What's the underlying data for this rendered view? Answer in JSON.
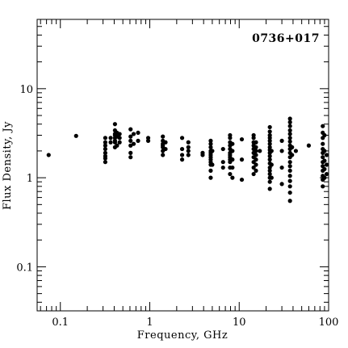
{
  "chart_data": {
    "type": "scatter",
    "title": "",
    "annotation": "0736+017",
    "xlabel": "Frequency, GHz",
    "ylabel": "Flux Density, Jy",
    "xscale": "log",
    "yscale": "log",
    "xlim": [
      0.055,
      100
    ],
    "ylim": [
      0.032,
      60
    ],
    "x_ticks": [
      {
        "value": 0.1,
        "label": "0.1"
      },
      {
        "value": 1,
        "label": "1"
      },
      {
        "value": 10,
        "label": "10"
      },
      {
        "value": 100,
        "label": "100"
      }
    ],
    "y_ticks": [
      {
        "value": 0.1,
        "label": "0.1"
      },
      {
        "value": 1,
        "label": "1"
      },
      {
        "value": 10,
        "label": "10"
      }
    ],
    "grid": false,
    "legend": "none",
    "marker_color": "#000000",
    "series": [
      {
        "points": [
          [
            0.074,
            1.8
          ],
          [
            0.15,
            2.95
          ],
          [
            0.318,
            1.5
          ],
          [
            0.318,
            1.75
          ],
          [
            0.318,
            1.9
          ],
          [
            0.318,
            2.1
          ],
          [
            0.318,
            2.3
          ],
          [
            0.318,
            2.5
          ],
          [
            0.318,
            2.8
          ],
          [
            0.318,
            1.65
          ],
          [
            0.365,
            2.5
          ],
          [
            0.365,
            2.8
          ],
          [
            0.408,
            2.2
          ],
          [
            0.408,
            2.5
          ],
          [
            0.408,
            2.8
          ],
          [
            0.408,
            3.1
          ],
          [
            0.408,
            3.4
          ],
          [
            0.408,
            4.0
          ],
          [
            0.408,
            3.0
          ],
          [
            0.408,
            2.6
          ],
          [
            0.43,
            2.3
          ],
          [
            0.43,
            2.9
          ],
          [
            0.43,
            3.2
          ],
          [
            0.46,
            2.5
          ],
          [
            0.46,
            2.8
          ],
          [
            0.46,
            3.1
          ],
          [
            0.61,
            1.7
          ],
          [
            0.61,
            1.9
          ],
          [
            0.61,
            2.3
          ],
          [
            0.61,
            2.6
          ],
          [
            0.61,
            2.9
          ],
          [
            0.61,
            3.5
          ],
          [
            0.66,
            2.4
          ],
          [
            0.66,
            3.1
          ],
          [
            0.74,
            2.6
          ],
          [
            0.74,
            3.2
          ],
          [
            0.96,
            2.6
          ],
          [
            0.96,
            2.8
          ],
          [
            1.4,
            1.8
          ],
          [
            1.4,
            2.0
          ],
          [
            1.4,
            2.2
          ],
          [
            1.4,
            2.4
          ],
          [
            1.4,
            2.6
          ],
          [
            1.4,
            2.9
          ],
          [
            1.4,
            2.3
          ],
          [
            1.5,
            2.1
          ],
          [
            1.5,
            2.5
          ],
          [
            2.3,
            1.6
          ],
          [
            2.3,
            1.8
          ],
          [
            2.3,
            2.1
          ],
          [
            2.3,
            2.8
          ],
          [
            2.7,
            1.8
          ],
          [
            2.7,
            2.0
          ],
          [
            2.7,
            2.2
          ],
          [
            2.7,
            2.5
          ],
          [
            3.9,
            1.8
          ],
          [
            3.9,
            1.9
          ],
          [
            4.8,
            1.0
          ],
          [
            4.8,
            1.2
          ],
          [
            4.8,
            1.4
          ],
          [
            4.8,
            1.6
          ],
          [
            4.8,
            1.8
          ],
          [
            4.8,
            2.0
          ],
          [
            4.8,
            2.2
          ],
          [
            4.8,
            2.4
          ],
          [
            4.8,
            2.6
          ],
          [
            4.8,
            1.5
          ],
          [
            4.8,
            1.7
          ],
          [
            4.8,
            1.9
          ],
          [
            5.0,
            1.4
          ],
          [
            5.0,
            2.0
          ],
          [
            6.6,
            1.3
          ],
          [
            6.6,
            1.5
          ],
          [
            6.6,
            2.1
          ],
          [
            7.9,
            1.1
          ],
          [
            7.9,
            1.3
          ],
          [
            7.9,
            1.5
          ],
          [
            7.9,
            1.7
          ],
          [
            7.9,
            1.9
          ],
          [
            7.9,
            2.1
          ],
          [
            7.9,
            2.3
          ],
          [
            7.9,
            2.5
          ],
          [
            7.9,
            2.8
          ],
          [
            7.9,
            3.0
          ],
          [
            7.9,
            1.6
          ],
          [
            7.9,
            1.8
          ],
          [
            8.4,
            1.0
          ],
          [
            8.4,
            1.3
          ],
          [
            8.4,
            1.6
          ],
          [
            8.4,
            2.0
          ],
          [
            8.4,
            2.4
          ],
          [
            10.7,
            0.95
          ],
          [
            10.7,
            1.6
          ],
          [
            10.7,
            2.7
          ],
          [
            14.5,
            1.1
          ],
          [
            14.5,
            1.3
          ],
          [
            14.5,
            1.5
          ],
          [
            14.5,
            1.7
          ],
          [
            14.5,
            1.9
          ],
          [
            14.5,
            2.1
          ],
          [
            14.5,
            2.3
          ],
          [
            14.5,
            2.5
          ],
          [
            14.5,
            2.8
          ],
          [
            14.5,
            3.0
          ],
          [
            15.4,
            1.2
          ],
          [
            15.4,
            1.4
          ],
          [
            15.4,
            1.6
          ],
          [
            15.4,
            1.8
          ],
          [
            15.4,
            2.0
          ],
          [
            15.4,
            2.2
          ],
          [
            15.4,
            2.5
          ],
          [
            17.0,
            2.0
          ],
          [
            22.0,
            0.75
          ],
          [
            22.0,
            0.9
          ],
          [
            22.0,
            1.0
          ],
          [
            22.0,
            1.1
          ],
          [
            22.0,
            1.2
          ],
          [
            22.0,
            1.3
          ],
          [
            22.0,
            1.45
          ],
          [
            22.0,
            1.6
          ],
          [
            22.0,
            1.75
          ],
          [
            22.0,
            1.9
          ],
          [
            22.0,
            2.05
          ],
          [
            22.0,
            2.2
          ],
          [
            22.0,
            2.4
          ],
          [
            22.0,
            2.6
          ],
          [
            22.0,
            2.8
          ],
          [
            22.0,
            3.0
          ],
          [
            22.0,
            3.3
          ],
          [
            22.0,
            3.7
          ],
          [
            23.0,
            1.0
          ],
          [
            23.0,
            1.4
          ],
          [
            23.0,
            2.0
          ],
          [
            30.0,
            0.85
          ],
          [
            30.0,
            1.3
          ],
          [
            30.0,
            2.0
          ],
          [
            30.0,
            2.6
          ],
          [
            37.0,
            0.55
          ],
          [
            37.0,
            0.68
          ],
          [
            37.0,
            0.8
          ],
          [
            37.0,
            0.92
          ],
          [
            37.0,
            1.05
          ],
          [
            37.0,
            1.2
          ],
          [
            37.0,
            1.35
          ],
          [
            37.0,
            1.5
          ],
          [
            37.0,
            1.7
          ],
          [
            37.0,
            1.9
          ],
          [
            37.0,
            2.1
          ],
          [
            37.0,
            2.3
          ],
          [
            37.0,
            2.55
          ],
          [
            37.0,
            2.8
          ],
          [
            37.0,
            3.1
          ],
          [
            37.0,
            3.4
          ],
          [
            37.0,
            3.8
          ],
          [
            37.0,
            4.2
          ],
          [
            37.0,
            4.6
          ],
          [
            39.0,
            1.8
          ],
          [
            39.0,
            2.2
          ],
          [
            43.0,
            2.0
          ],
          [
            60.0,
            2.3
          ],
          [
            86.0,
            0.8
          ],
          [
            86.0,
            0.95
          ],
          [
            86.0,
            1.05
          ],
          [
            86.0,
            1.2
          ],
          [
            86.0,
            1.35
          ],
          [
            86.0,
            1.5
          ],
          [
            86.0,
            1.7
          ],
          [
            86.0,
            1.9
          ],
          [
            86.0,
            2.1
          ],
          [
            86.0,
            2.4
          ],
          [
            86.0,
            2.8
          ],
          [
            86.0,
            3.2
          ],
          [
            86.0,
            3.8
          ],
          [
            90.0,
            1.0
          ],
          [
            90.0,
            1.25
          ],
          [
            90.0,
            1.55
          ],
          [
            90.0,
            2.0
          ],
          [
            90.0,
            3.0
          ],
          [
            95.0,
            1.1
          ],
          [
            95.0,
            1.4
          ],
          [
            95.0,
            1.8
          ]
        ]
      }
    ]
  }
}
